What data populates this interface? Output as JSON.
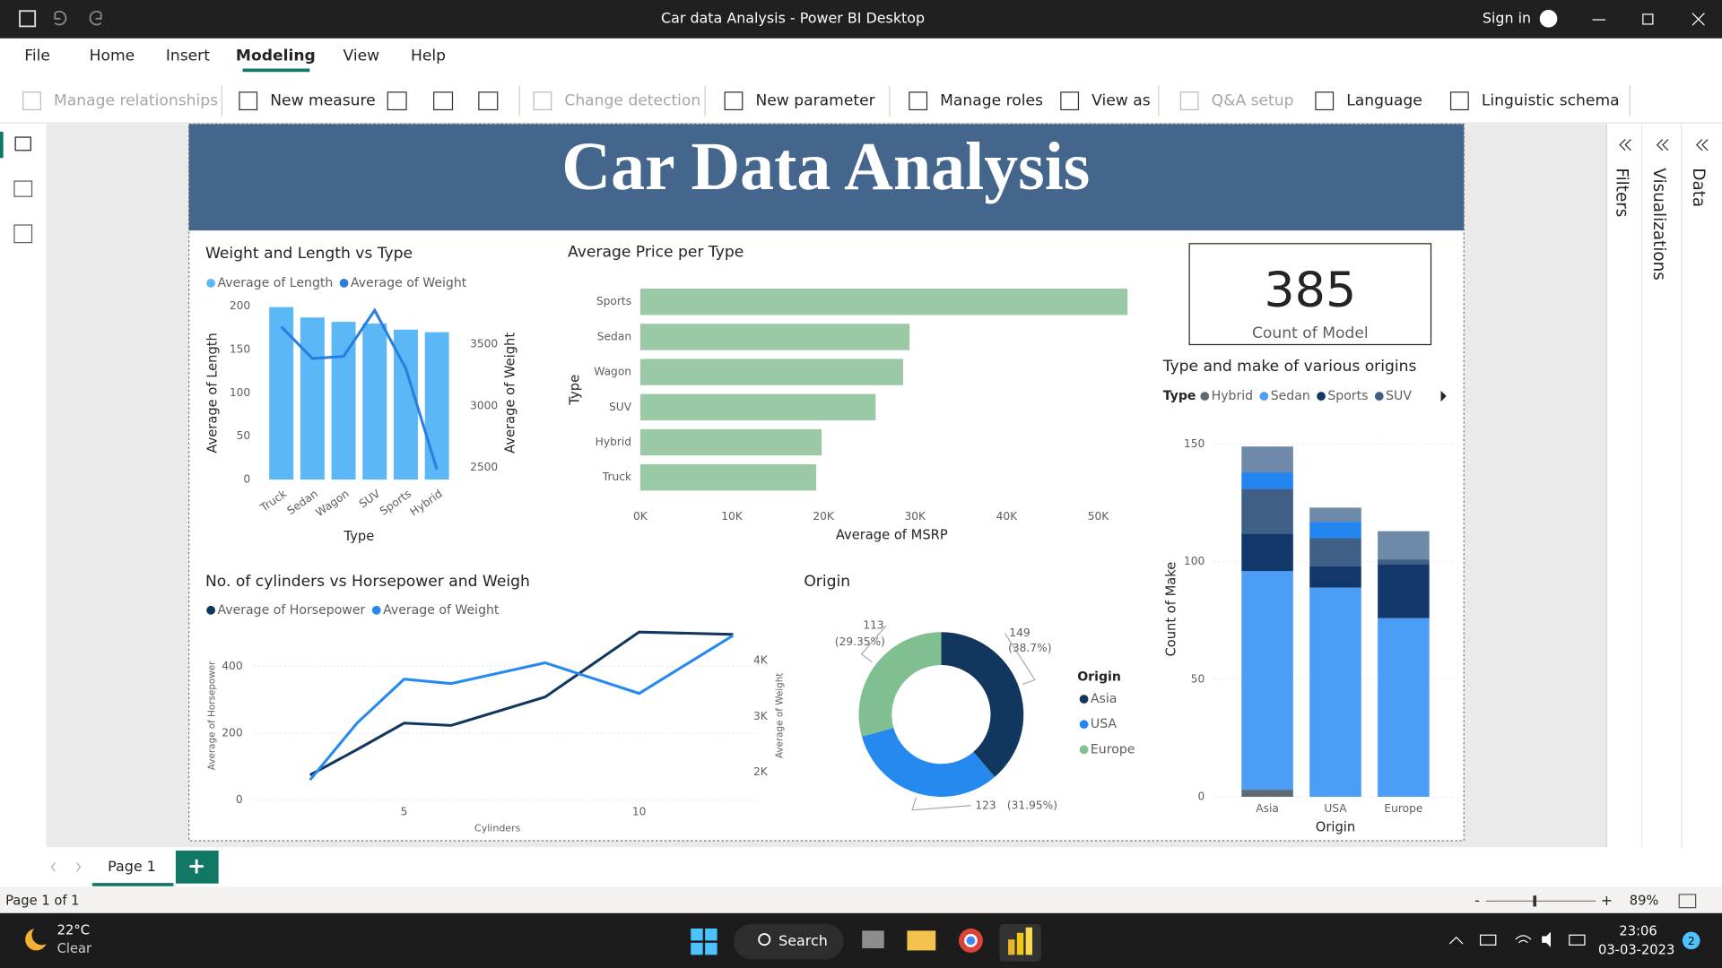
{
  "window": {
    "title": "Car data Analysis - Power BI Desktop",
    "sign_in": "Sign in"
  },
  "menu": [
    "File",
    "Home",
    "Insert",
    "Modeling",
    "View",
    "Help"
  ],
  "ribbon": [
    "Manage relationships",
    "New measure",
    "Change detection",
    "New parameter",
    "Manage roles",
    "View as",
    "Q&A setup",
    "Language",
    "Linguistic schema"
  ],
  "panes": [
    "Filters",
    "Visualizations",
    "Data"
  ],
  "report": {
    "title": "Car Data Analysis",
    "card": {
      "value": 385,
      "label": "Count of Model"
    }
  },
  "chart_data": [
    {
      "type": "combo",
      "title": "Weight and Length vs Type",
      "categories": [
        "Truck",
        "Sedan",
        "Wagon",
        "SUV",
        "Sports",
        "Hybrid"
      ],
      "series": [
        {
          "name": "Average of Length",
          "type": "bar",
          "color": "#5cb7f6",
          "values": [
            199,
            187,
            182,
            180,
            173,
            170
          ]
        },
        {
          "name": "Average of Weight",
          "type": "line",
          "axis": "y2",
          "color": "#2a7de1",
          "values": [
            3643,
            3384,
            3402,
            3777,
            3304,
            2482
          ]
        }
      ],
      "ylim": [
        0,
        200
      ],
      "yticks": [
        0,
        50,
        100,
        150,
        200
      ],
      "y2lim": [
        2400,
        3810
      ],
      "y2ticks": [
        2500,
        3000,
        3500
      ],
      "x_label": "Type",
      "y_label": "Average of Length",
      "y2_label": "Average of Weight",
      "grid": false
    },
    {
      "type": "bar",
      "orientation": "horizontal",
      "title": "Average Price per Type",
      "categories": [
        "Sports",
        "Sedan",
        "Wagon",
        "SUV",
        "Hybrid",
        "Truck"
      ],
      "values": [
        53200,
        29400,
        28700,
        25700,
        19800,
        19200
      ],
      "color": "#9bc9a6",
      "xlim": [
        0,
        55000
      ],
      "xticks": [
        {
          "value": 0,
          "label": "0K"
        },
        {
          "value": 10000,
          "label": "10K"
        },
        {
          "value": 20000,
          "label": "20K"
        },
        {
          "value": 30000,
          "label": "30K"
        },
        {
          "value": 40000,
          "label": "40K"
        },
        {
          "value": 50000,
          "label": "50K"
        }
      ],
      "x_label": "Average of MSRP",
      "y_label": "Type",
      "grid": false
    },
    {
      "type": "line",
      "title": "No. of cylinders vs Horsepower and Weigh",
      "x": [
        3,
        4,
        5,
        6,
        8,
        10,
        12
      ],
      "series": [
        {
          "name": "Average of Horsepower",
          "color": "#12375e",
          "values": [
            75,
            151,
            230,
            223,
            308,
            502,
            495
          ]
        },
        {
          "name": "Average of Weight",
          "axis": "y2",
          "color": "#2589f0",
          "values": [
            1863,
            2882,
            3667,
            3588,
            3961,
            3412,
            4451
          ]
        }
      ],
      "xlim": [
        1.8,
        12.5
      ],
      "xticks": [
        5,
        10
      ],
      "ylim": [
        0,
        500
      ],
      "yticks": [
        0,
        200,
        400
      ],
      "y2lim": [
        1500,
        4500
      ],
      "y2ticks": [
        {
          "value": 2000,
          "label": "2K"
        },
        {
          "value": 3000,
          "label": "3K"
        },
        {
          "value": 4000,
          "label": "4K"
        }
      ],
      "x_label": "Cylinders",
      "y_label": "Average of Horsepower",
      "y2_label": "Average of Weight",
      "grid": true
    },
    {
      "type": "donut",
      "title": "Origin",
      "legend_title": "Origin",
      "categories": [
        "Asia",
        "USA",
        "Europe"
      ],
      "values": [
        149,
        123,
        113
      ],
      "percent_labels": [
        "(38.7%)",
        "(31.95%)",
        "(29.35%)"
      ],
      "colors": [
        "#12375e",
        "#2589f0",
        "#7fbf90"
      ]
    },
    {
      "type": "bar",
      "stacked": true,
      "title": "Type and make of various origins",
      "legend_title": "Type",
      "categories": [
        "Asia",
        "USA",
        "Europe"
      ],
      "series": [
        {
          "name": "Hybrid",
          "color": "#5f6b70",
          "values": [
            3,
            0,
            0
          ]
        },
        {
          "name": "Sedan",
          "color": "#4b9df6",
          "values": [
            93,
            89,
            76
          ]
        },
        {
          "name": "Sports",
          "color": "#12386b",
          "values": [
            16,
            9,
            23
          ]
        },
        {
          "name": "SUV",
          "color": "#3f5f86",
          "values": [
            19,
            12,
            2
          ]
        },
        {
          "name": null,
          "color": "#2385ef",
          "values": [
            7,
            7,
            0
          ]
        },
        {
          "name": null,
          "color": "#6f8aa8",
          "values": [
            11,
            6,
            12
          ]
        }
      ],
      "ylim": [
        0,
        155
      ],
      "yticks": [
        0,
        50,
        100,
        150
      ],
      "x_label": "Origin",
      "y_label": "Count of Make",
      "grid": true
    }
  ],
  "pages": {
    "tab": "Page 1",
    "add": "+",
    "status": "Page 1 of 1"
  },
  "zoom": {
    "minus": "-",
    "plus": "+",
    "level": "89%"
  },
  "taskbar": {
    "temperature": "22°C",
    "weather": "Clear",
    "search": "Search",
    "time": "23:06",
    "date": "03-03-2023",
    "notifications": "2"
  }
}
